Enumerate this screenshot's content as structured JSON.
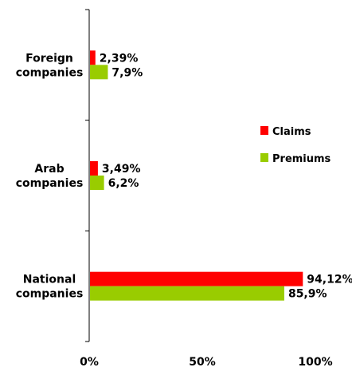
{
  "chart_data": {
    "type": "bar",
    "orientation": "horizontal",
    "categories": [
      [
        "Foreign",
        "companies"
      ],
      [
        "Arab",
        "companies"
      ],
      [
        "National",
        "companies"
      ]
    ],
    "series": [
      {
        "name": "Claims",
        "color": "#ff0000",
        "values": [
          2.39,
          3.49,
          94.12
        ],
        "labels": [
          "2,39%",
          "3,49%",
          "94,12%"
        ]
      },
      {
        "name": "Premiums",
        "color": "#99cc00",
        "values": [
          7.9,
          6.2,
          85.9
        ],
        "labels": [
          "7,9%",
          "6,2%",
          "85,9%"
        ]
      }
    ],
    "xlim": [
      0,
      100
    ],
    "xticks": [
      0,
      50,
      100
    ],
    "xtick_labels": [
      "0%",
      "50%",
      "100%"
    ],
    "grid": false,
    "legend_position": "right"
  }
}
